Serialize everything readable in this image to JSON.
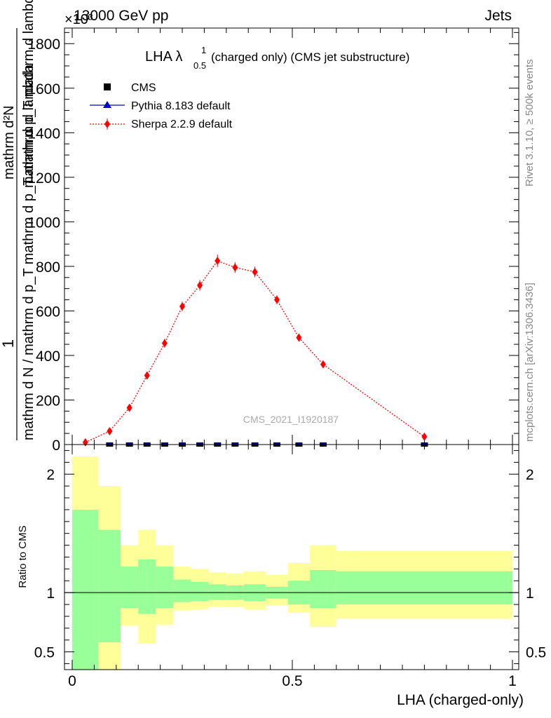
{
  "header": {
    "energy": "13000 GeV pp",
    "process": "Jets",
    "exponent": "×10³"
  },
  "side_labels": {
    "rivet": "Rivet 3.1.10, ≥ 500k events",
    "mcplots": "mcplots.cern.ch [arXiv:1306.3436]"
  },
  "watermark": "CMS_2021_I1920187",
  "chart_data": [
    {
      "type": "scatter",
      "panel": "main",
      "title": "LHA λ",
      "title_sup": "1",
      "title_sub": "0.5",
      "title_rest": "(charged only) (CMS jet substructure)",
      "ylabel_numerator": "mathrm d²N",
      "ylabel_denominator": "mathrm d N / mathrm d p_T mathrm d p_T mathrm d lambda",
      "ylabel_one": "1",
      "ylabel_display": "mathrm d N / mathrm d p_T mathrm d p_T mathrm d lambda",
      "ylabel_num_display": "mathrm d²N",
      "ylabel_den_sub": "mathrm d p_T mathrm d lambda",
      "xlim": [
        0,
        1
      ],
      "ylim": [
        0,
        1870
      ],
      "y_scale_note": "×10³",
      "yticks": [
        0,
        200,
        400,
        600,
        800,
        1000,
        1200,
        1400,
        1600,
        1800
      ],
      "ytick_labels": [
        "0",
        "200",
        "400",
        "600",
        "800",
        "1000",
        "1200",
        "1400",
        "1600",
        "1800"
      ],
      "legend": [
        {
          "label": "CMS",
          "marker": "square",
          "color": "#000000"
        },
        {
          "label": "Pythia 8.183 default",
          "marker": "triangle",
          "color": "#0000cc"
        },
        {
          "label": "Sherpa 2.2.9 default",
          "marker": "diamond",
          "color": "#ff0000"
        }
      ],
      "series": [
        {
          "name": "CMS",
          "x": [
            0.085,
            0.13,
            0.17,
            0.21,
            0.25,
            0.29,
            0.33,
            0.37,
            0.415,
            0.465,
            0.515,
            0.57,
            0.8
          ],
          "y": [
            0,
            0,
            0,
            0,
            0,
            0,
            0,
            0,
            0,
            0,
            0,
            0,
            0
          ]
        },
        {
          "name": "Sherpa 2.2.9 default",
          "x": [
            0.03,
            0.085,
            0.13,
            0.17,
            0.21,
            0.25,
            0.29,
            0.33,
            0.37,
            0.415,
            0.465,
            0.515,
            0.57,
            0.8
          ],
          "y": [
            10,
            60,
            165,
            310,
            455,
            620,
            715,
            825,
            795,
            775,
            650,
            480,
            360,
            35
          ],
          "err": [
            6,
            10,
            14,
            18,
            20,
            22,
            24,
            28,
            24,
            24,
            20,
            18,
            16,
            8
          ]
        }
      ]
    },
    {
      "type": "area",
      "panel": "ratio",
      "ylabel": "Ratio to CMS",
      "xlabel": "LHA (charged-only)",
      "ylim": [
        0.35,
        2.25
      ],
      "yticks": [
        0.5,
        1,
        2
      ],
      "ytick_labels": [
        "0.5",
        "1",
        "2"
      ],
      "xticks": [
        0,
        0.5,
        1
      ],
      "xtick_labels": [
        "0",
        "0.5",
        "1"
      ],
      "bins": [
        {
          "lo": 0.0,
          "hi": 0.06,
          "green": [
            0.35,
            1.7
          ],
          "yellow": [
            0.35,
            2.15
          ]
        },
        {
          "lo": 0.06,
          "hi": 0.11,
          "green": [
            0.58,
            1.53
          ],
          "yellow": [
            0.35,
            1.9
          ]
        },
        {
          "lo": 0.11,
          "hi": 0.15,
          "green": [
            0.87,
            1.22
          ],
          "yellow": [
            0.72,
            1.4
          ]
        },
        {
          "lo": 0.15,
          "hi": 0.19,
          "green": [
            0.82,
            1.28
          ],
          "yellow": [
            0.57,
            1.53
          ]
        },
        {
          "lo": 0.19,
          "hi": 0.23,
          "green": [
            0.87,
            1.22
          ],
          "yellow": [
            0.73,
            1.4
          ]
        },
        {
          "lo": 0.23,
          "hi": 0.27,
          "green": [
            0.92,
            1.11
          ],
          "yellow": [
            0.85,
            1.22
          ]
        },
        {
          "lo": 0.27,
          "hi": 0.31,
          "green": [
            0.93,
            1.09
          ],
          "yellow": [
            0.86,
            1.2
          ]
        },
        {
          "lo": 0.31,
          "hi": 0.35,
          "green": [
            0.94,
            1.07
          ],
          "yellow": [
            0.88,
            1.17
          ]
        },
        {
          "lo": 0.35,
          "hi": 0.39,
          "green": [
            0.94,
            1.06
          ],
          "yellow": [
            0.88,
            1.16
          ]
        },
        {
          "lo": 0.39,
          "hi": 0.44,
          "green": [
            0.93,
            1.07
          ],
          "yellow": [
            0.86,
            1.18
          ]
        },
        {
          "lo": 0.44,
          "hi": 0.49,
          "green": [
            0.95,
            1.05
          ],
          "yellow": [
            0.89,
            1.15
          ]
        },
        {
          "lo": 0.49,
          "hi": 0.54,
          "green": [
            0.9,
            1.1
          ],
          "yellow": [
            0.83,
            1.25
          ]
        },
        {
          "lo": 0.54,
          "hi": 0.6,
          "green": [
            0.87,
            1.19
          ],
          "yellow": [
            0.71,
            1.4
          ]
        },
        {
          "lo": 0.6,
          "hi": 1.0,
          "green": [
            0.9,
            1.18
          ],
          "yellow": [
            0.78,
            1.35
          ]
        }
      ]
    }
  ]
}
